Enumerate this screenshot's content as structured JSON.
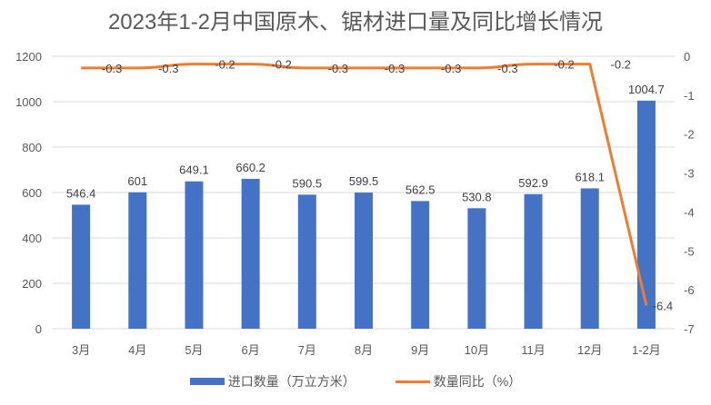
{
  "title": "2023年1-2月中国原木、锯材进口量及同比增长情况",
  "colors": {
    "bar": "#4472C4",
    "line": "#ED7D31",
    "grid": "#D9D9D9",
    "text": "#595959"
  },
  "legend": {
    "bar_label": "进口数量（万立方米）",
    "line_label": "数量同比（%）"
  },
  "chart_data": {
    "type": "bar+line",
    "title": "2023年1-2月中国原木、锯材进口量及同比增长情况",
    "categories": [
      "3月",
      "4月",
      "5月",
      "6月",
      "7月",
      "8月",
      "9月",
      "10月",
      "11月",
      "12月",
      "1-2月"
    ],
    "series": [
      {
        "name": "进口数量（万立方米）",
        "type": "bar",
        "axis": "left",
        "values": [
          546.4,
          601,
          649.1,
          660.2,
          590.5,
          599.5,
          562.5,
          530.8,
          592.9,
          618.1,
          1004.7
        ]
      },
      {
        "name": "数量同比（%）",
        "type": "line",
        "axis": "right",
        "values": [
          -0.3,
          -0.3,
          -0.2,
          -0.2,
          -0.3,
          -0.3,
          -0.3,
          -0.3,
          -0.2,
          -0.2,
          -6.4
        ]
      }
    ],
    "y_left": {
      "min": 0,
      "max": 1200,
      "ticks": [
        0,
        200,
        400,
        600,
        800,
        1000,
        1200
      ]
    },
    "y_right": {
      "min": -7,
      "max": 0,
      "ticks": [
        0,
        -1,
        -2,
        -3,
        -4,
        -5,
        -6,
        -7
      ]
    },
    "grid": true,
    "legend_position": "bottom"
  }
}
